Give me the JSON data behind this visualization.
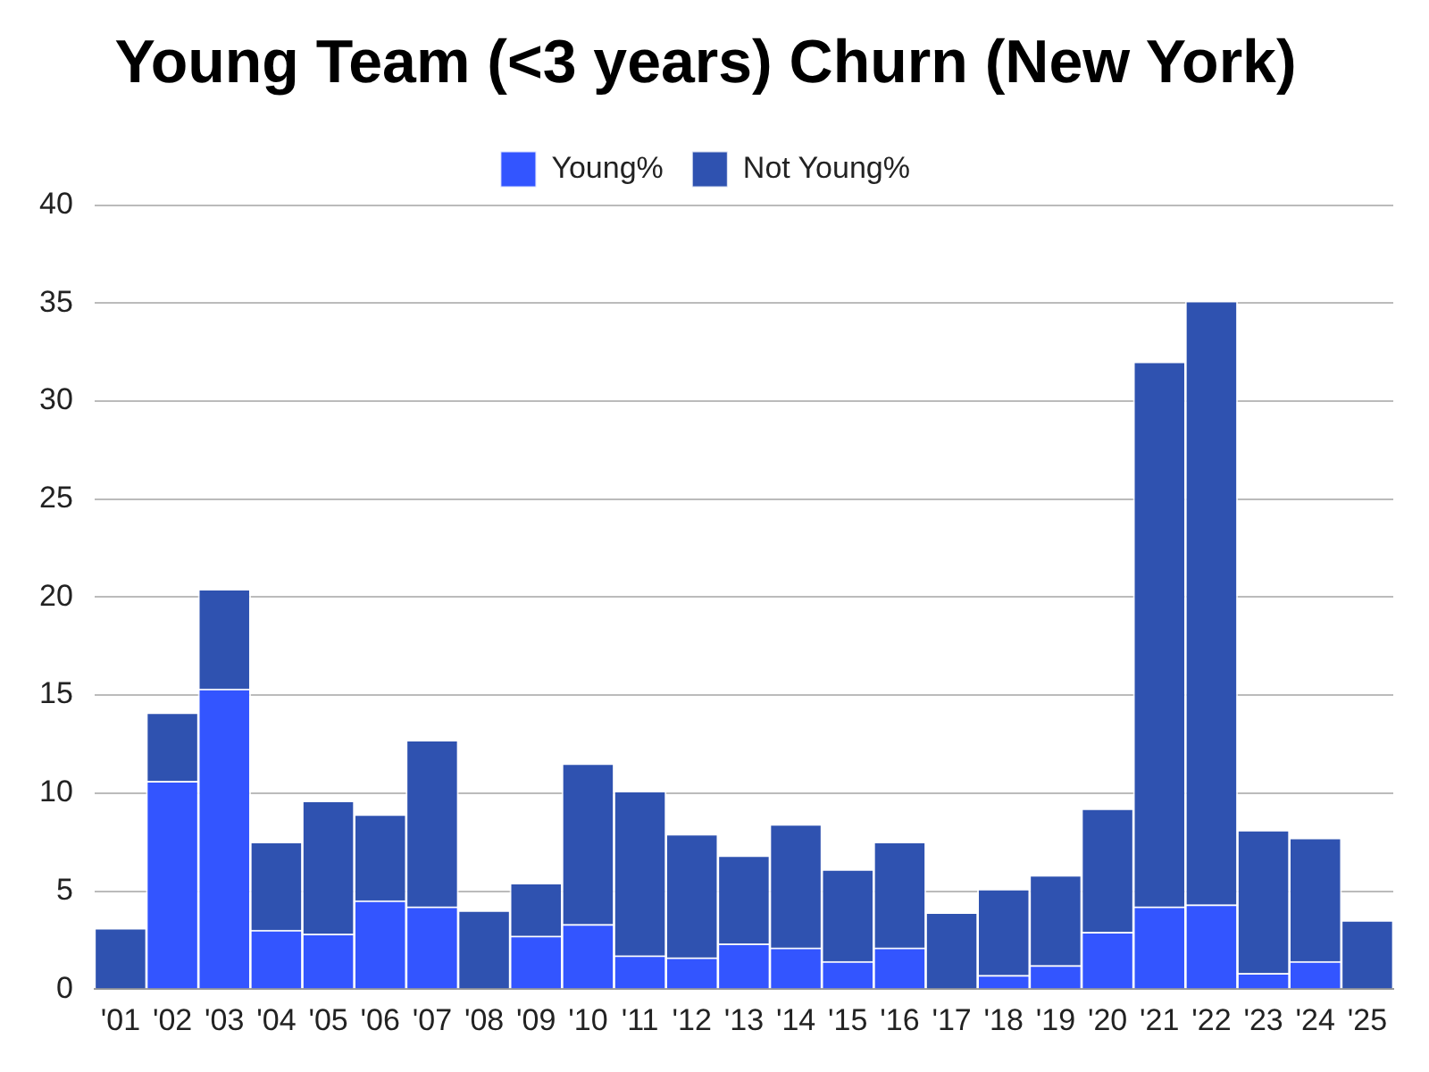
{
  "chart_data": {
    "type": "bar",
    "title": "Young Team (<3 years) Churn (New York)",
    "stacked": true,
    "legend": "top",
    "grid": "y",
    "categories": [
      "'01",
      "'02",
      "'03",
      "'04",
      "'05",
      "'06",
      "'07",
      "'08",
      "'09",
      "'10",
      "'11",
      "'12",
      "'13",
      "'14",
      "'15",
      "'16",
      "'17",
      "'18",
      "'19",
      "'20",
      "'21",
      "'22",
      "'23",
      "'24",
      "'25"
    ],
    "series": [
      {
        "name": "Young%",
        "color": "#3355ff",
        "values": [
          0,
          10.6,
          15.3,
          3.0,
          2.8,
          4.5,
          4.2,
          0,
          2.7,
          3.3,
          1.7,
          1.6,
          2.3,
          2.1,
          1.4,
          2.1,
          0,
          0.7,
          1.2,
          2.9,
          4.2,
          4.3,
          0.8,
          1.4,
          0
        ]
      },
      {
        "name": "Not Young%",
        "color": "#2f52b0",
        "values": [
          3.1,
          3.5,
          5.1,
          4.5,
          6.8,
          4.4,
          8.5,
          4.0,
          2.7,
          8.2,
          8.4,
          6.3,
          4.5,
          6.3,
          4.7,
          5.4,
          3.9,
          4.4,
          4.6,
          6.3,
          27.8,
          30.8,
          7.3,
          6.3,
          3.5
        ]
      }
    ],
    "ylim": [
      0,
      40
    ],
    "yticks": [
      0,
      5,
      10,
      15,
      20,
      25,
      30,
      35,
      40
    ]
  }
}
